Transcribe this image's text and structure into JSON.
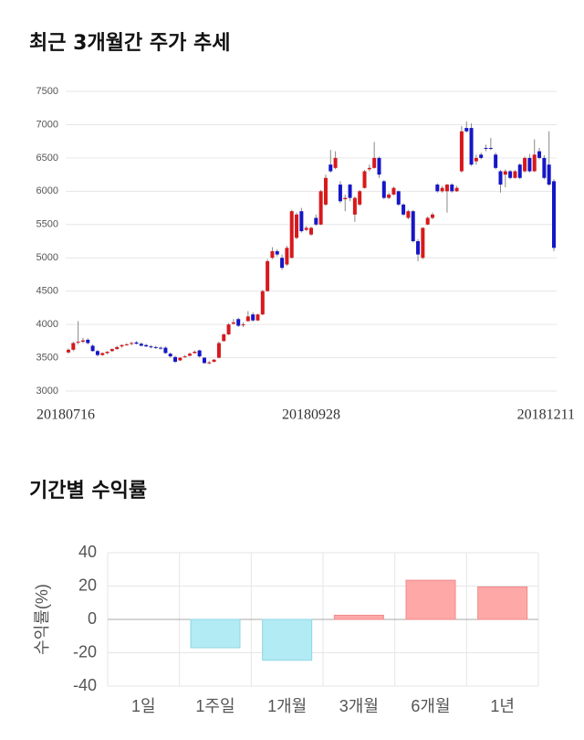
{
  "chart_data": [
    {
      "type": "candlestick",
      "title": "최근 3개월간 주가 추세",
      "categories": [
        "20180716",
        null,
        null,
        null,
        null,
        null,
        null,
        null,
        null,
        null,
        null,
        null,
        null,
        null,
        null,
        null,
        null,
        null,
        null,
        null,
        null,
        null,
        null,
        null,
        null,
        null,
        null,
        null,
        null,
        null,
        null,
        null,
        null,
        null,
        null,
        null,
        null,
        null,
        null,
        null,
        null,
        null,
        null,
        null,
        null,
        null,
        null,
        null,
        null,
        null,
        "20180928",
        null,
        null,
        null,
        null,
        null,
        null,
        null,
        null,
        null,
        null,
        null,
        null,
        null,
        null,
        null,
        null,
        null,
        null,
        null,
        null,
        null,
        null,
        null,
        null,
        null,
        null,
        null,
        null,
        null,
        null,
        null,
        null,
        null,
        null,
        null,
        null,
        null,
        null,
        null,
        null,
        null,
        null,
        null,
        null,
        null,
        null,
        null,
        null,
        null,
        "20181211"
      ],
      "open": [
        3580,
        3620,
        3730,
        3740,
        3770,
        3680,
        3600,
        3540,
        3570,
        3600,
        3630,
        3670,
        3690,
        3710,
        3730,
        3710,
        3690,
        3670,
        3660,
        3650,
        3650,
        3560,
        3510,
        3460,
        3510,
        3530,
        3570,
        3610,
        3500,
        3420,
        3440,
        3500,
        3750,
        3850,
        4010,
        4080,
        3990,
        4050,
        4150,
        4060,
        4150,
        4500,
        5000,
        5100,
        5000,
        4900,
        5000,
        5300,
        5700,
        5420,
        5350,
        5600,
        5500,
        5800,
        6400,
        6350,
        6100,
        5880,
        6100,
        5650,
        5800,
        6050,
        6330,
        6350,
        6500,
        6150,
        5900,
        5950,
        6000,
        5800,
        5600,
        5700,
        5250,
        5000,
        5500,
        5600,
        6100,
        6000,
        6000,
        6100,
        6000,
        6300,
        6950,
        6950,
        6450,
        6550,
        6650,
        6650,
        6550,
        6300,
        6250,
        6300,
        6200,
        6400,
        6300,
        6500,
        6300,
        6600,
        6500,
        6400,
        6150
      ],
      "high": [
        3640,
        3740,
        4050,
        3800,
        3790,
        3700,
        3620,
        3580,
        3600,
        3640,
        3680,
        3700,
        3720,
        3740,
        3750,
        3730,
        3710,
        3690,
        3680,
        3670,
        3670,
        3580,
        3530,
        3510,
        3540,
        3580,
        3610,
        3620,
        3510,
        3450,
        3480,
        3740,
        3870,
        4020,
        4080,
        4100,
        4030,
        4200,
        4180,
        4160,
        4520,
        4980,
        5160,
        5130,
        5050,
        5180,
        5720,
        5680,
        5750,
        5480,
        5470,
        5650,
        6020,
        6250,
        6620,
        6600,
        6150,
        5950,
        6110,
        5920,
        6020,
        6320,
        6400,
        6740,
        6520,
        6170,
        5980,
        6070,
        6010,
        5820,
        5720,
        5720,
        5280,
        5460,
        5620,
        5680,
        6120,
        6080,
        6110,
        6120,
        6080,
        6980,
        7050,
        7020,
        6550,
        6580,
        6700,
        6800,
        6580,
        6320,
        6330,
        6320,
        6320,
        6420,
        6520,
        6560,
        6780,
        6650,
        6540,
        6900,
        6180
      ],
      "low": [
        3560,
        3600,
        3700,
        3720,
        3700,
        3590,
        3520,
        3530,
        3550,
        3590,
        3620,
        3650,
        3680,
        3690,
        3700,
        3670,
        3660,
        3640,
        3630,
        3620,
        3560,
        3500,
        3420,
        3450,
        3500,
        3520,
        3560,
        3500,
        3410,
        3400,
        3430,
        3490,
        3740,
        3840,
        4000,
        3960,
        3960,
        4040,
        4040,
        4050,
        4140,
        4490,
        4980,
        5020,
        4820,
        4880,
        4990,
        5280,
        5380,
        5400,
        5330,
        5480,
        5490,
        5780,
        6280,
        6330,
        5820,
        5700,
        5850,
        5540,
        5780,
        6040,
        6300,
        6340,
        6200,
        5880,
        5880,
        5940,
        5780,
        5630,
        5580,
        5230,
        4950,
        4980,
        5490,
        5580,
        5980,
        5980,
        5680,
        5980,
        5990,
        6280,
        6880,
        6380,
        6400,
        6480,
        6600,
        6620,
        6330,
        5980,
        6060,
        6180,
        6190,
        6180,
        6280,
        6280,
        6290,
        6480,
        6180,
        6080,
        5100
      ],
      "close": [
        3620,
        3720,
        3740,
        3760,
        3720,
        3600,
        3540,
        3570,
        3590,
        3630,
        3660,
        3690,
        3700,
        3720,
        3710,
        3680,
        3670,
        3660,
        3650,
        3640,
        3570,
        3520,
        3440,
        3500,
        3520,
        3560,
        3590,
        3520,
        3420,
        3430,
        3470,
        3720,
        3850,
        4000,
        4030,
        3980,
        4000,
        4120,
        4060,
        4150,
        4500,
        4950,
        5100,
        5050,
        4850,
        5150,
        5700,
        5650,
        5400,
        5450,
        5450,
        5500,
        6000,
        6200,
        6300,
        6500,
        5850,
        5900,
        5900,
        5900,
        6000,
        6300,
        6350,
        6500,
        6250,
        5900,
        5950,
        6050,
        5800,
        5650,
        5700,
        5250,
        5050,
        5450,
        5600,
        5650,
        6000,
        6050,
        6100,
        6000,
        6050,
        6900,
        6900,
        6400,
        6500,
        6500,
        6640,
        6640,
        6350,
        6100,
        6300,
        6200,
        6300,
        6200,
        6500,
        6300,
        6550,
        6500,
        6200,
        6100,
        5150
      ],
      "up_color": "#d7191c",
      "down_color": "#1616c8",
      "ylim": [
        3000,
        7500
      ],
      "yticks": [
        3000,
        3500,
        4000,
        4500,
        5000,
        5500,
        6000,
        6500,
        7000,
        7500
      ],
      "grid": true
    },
    {
      "type": "bar",
      "title": "기간별 수익률",
      "ylabel": "수익률(%)",
      "categories": [
        "1일",
        "1주일",
        "1개월",
        "3개월",
        "6개월",
        "1년"
      ],
      "values": [
        0,
        -17,
        -24.5,
        2.5,
        23.5,
        19.5
      ],
      "positive_color": "#ffa8a8",
      "negative_color": "#b2ebf4",
      "ylim": [
        -40,
        40
      ],
      "yticks": [
        -40,
        -20,
        0,
        20,
        40
      ],
      "grid": true
    }
  ]
}
